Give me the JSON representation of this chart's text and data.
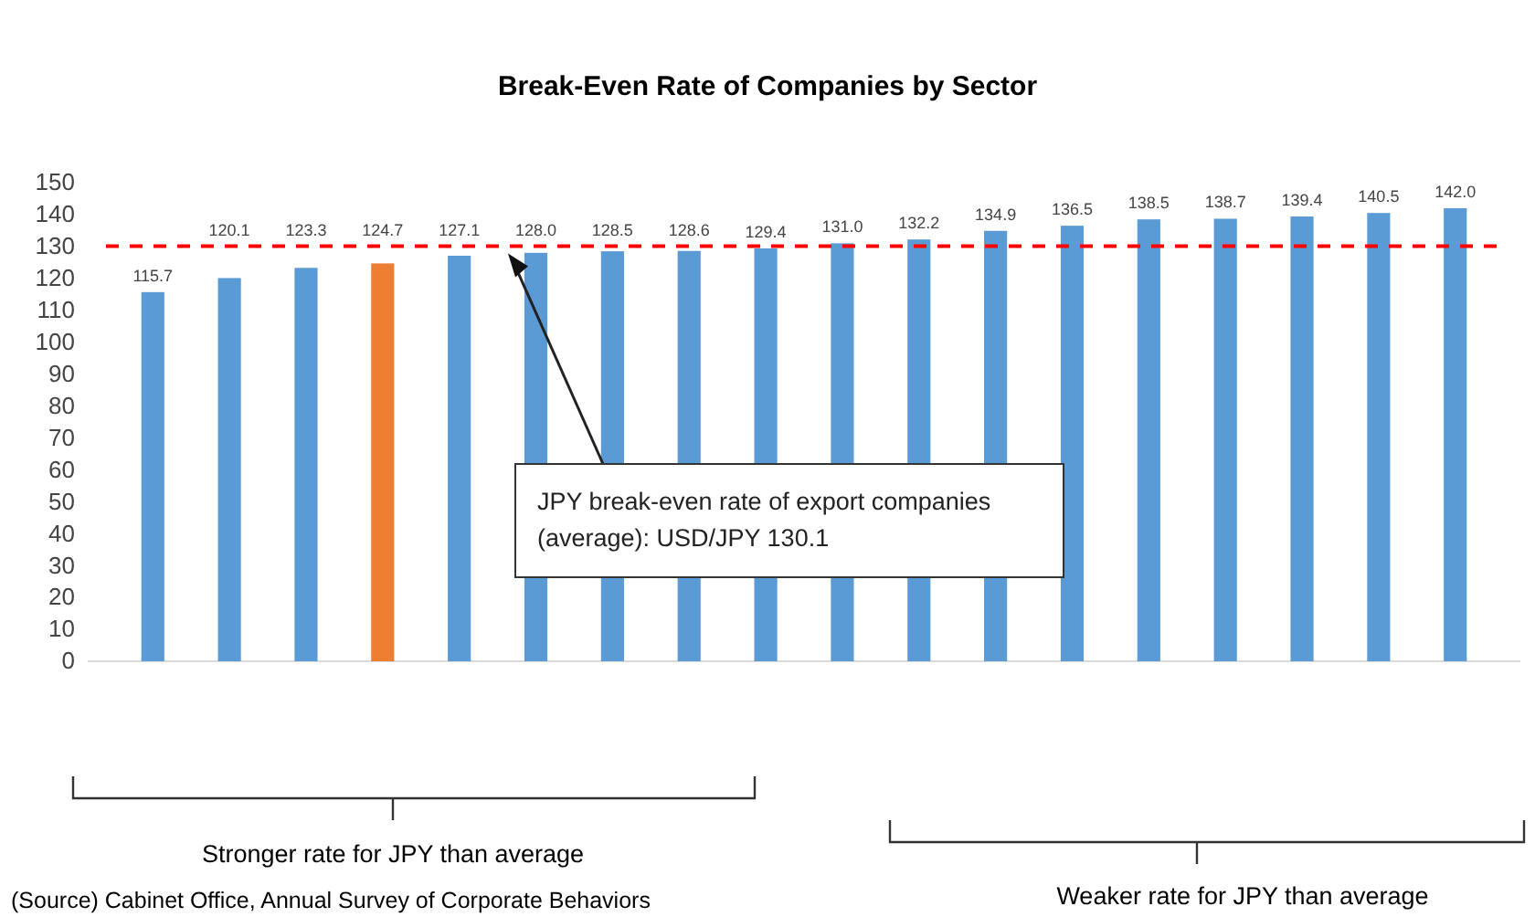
{
  "chart_data": {
    "type": "bar",
    "title": "Break-Even Rate of Companies by Sector",
    "categories": [
      null,
      null,
      null,
      null,
      null,
      null,
      null,
      null,
      null,
      null,
      null,
      null,
      null,
      null,
      null,
      null,
      null,
      null
    ],
    "values": [
      115.7,
      120.1,
      123.3,
      124.7,
      127.1,
      128.0,
      128.5,
      128.6,
      129.4,
      131.0,
      132.2,
      134.9,
      136.5,
      138.5,
      138.7,
      139.4,
      140.5,
      142.0
    ],
    "colors": [
      "#5b9bd5",
      "#5b9bd5",
      "#5b9bd5",
      "#ed7d31",
      "#5b9bd5",
      "#5b9bd5",
      "#5b9bd5",
      "#5b9bd5",
      "#5b9bd5",
      "#5b9bd5",
      "#5b9bd5",
      "#5b9bd5",
      "#5b9bd5",
      "#5b9bd5",
      "#5b9bd5",
      "#5b9bd5",
      "#5b9bd5",
      "#5b9bd5"
    ],
    "value_labels": [
      "115.7",
      "120.1",
      "123.3",
      "124.7",
      "127.1",
      "128.0",
      "128.5",
      "128.6",
      "129.4",
      "131.0",
      "132.2",
      "134.9",
      "136.5",
      "138.5",
      "138.7",
      "139.4",
      "140.5",
      "142.0"
    ],
    "ylim": [
      0,
      150
    ],
    "yticks": [
      0,
      10,
      20,
      30,
      40,
      50,
      60,
      70,
      80,
      90,
      100,
      110,
      120,
      130,
      140,
      150
    ],
    "grid": false,
    "ref_lines": [
      {
        "axis": "y",
        "value": 130.1,
        "color": "#ff0000",
        "line_style": "dashed"
      }
    ],
    "annotations": [
      "JPY break-even rate of export companies (average): USD/JPY 130.1",
      "Stronger rate for JPY than average",
      "Weaker rate for JPY than average",
      "(Source)  Cabinet Office, Annual Survey of Corporate Behaviors"
    ]
  }
}
